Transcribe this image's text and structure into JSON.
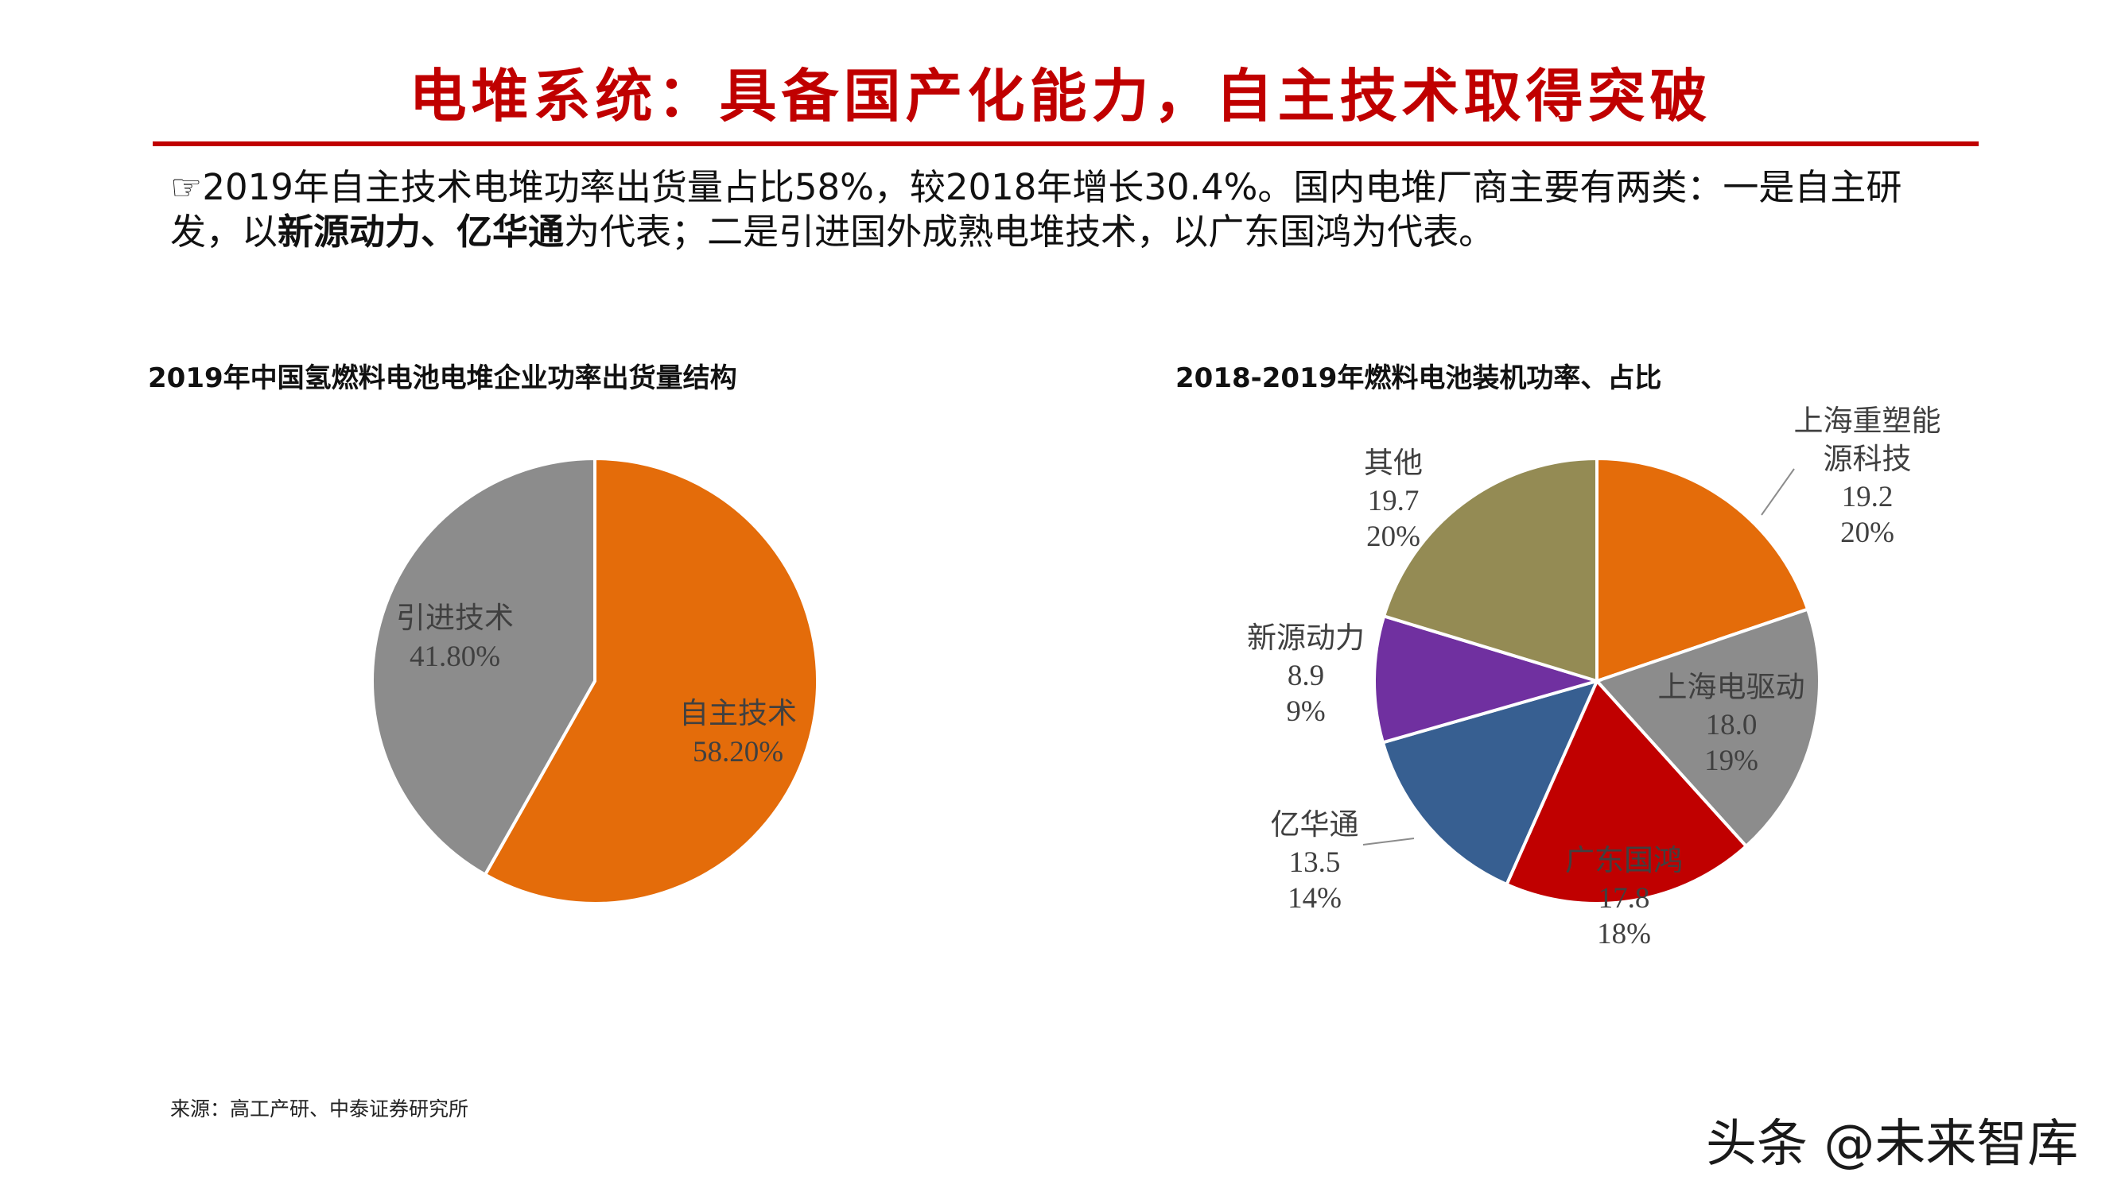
{
  "page": {
    "title": "电堆系统：具备国产化能力，自主技术取得突破",
    "intro": {
      "bullet": "☞",
      "text_part1": "2019年自主技术电堆功率出货量占比58%，较2018年增长30.4%。国内电堆厂商主要有两类：一是自主研发，以",
      "bold1": "新源动力",
      "sep": "、",
      "bold2": "亿华通",
      "text_part2": "为代表；二是引进国外成熟电堆技术，以广东国鸿为代表。"
    },
    "source": "来源：高工产研、中泰证券研究所",
    "watermark": "头条 @未来智库"
  },
  "chart_data": [
    {
      "type": "pie",
      "title": "2019年中国氢燃料电池电堆企业功率出货量结构",
      "series": [
        {
          "name": "自主技术",
          "value": 58.2,
          "label": "58.20%",
          "color": "#e46c0a"
        },
        {
          "name": "引进技术",
          "value": 41.8,
          "label": "41.80%",
          "color": "#8c8c8c"
        }
      ]
    },
    {
      "type": "pie",
      "title": "2018-2019年燃料电池装机功率、占比",
      "series": [
        {
          "name": "上海重塑能源科技",
          "value": 19.2,
          "value_label": "19.2",
          "percent": "20%",
          "color": "#e46c0a"
        },
        {
          "name": "上海电驱动",
          "value": 18.0,
          "value_label": "18.0",
          "percent": "19%",
          "color": "#8c8c8c"
        },
        {
          "name": "广东国鸿",
          "value": 17.8,
          "value_label": "17.8",
          "percent": "18%",
          "color": "#c00000"
        },
        {
          "name": "亿华通",
          "value": 13.5,
          "value_label": "13.5",
          "percent": "14%",
          "color": "#375f91"
        },
        {
          "name": "新源动力",
          "value": 8.9,
          "value_label": "8.9",
          "percent": "9%",
          "color": "#7030a0"
        },
        {
          "name": "其他",
          "value": 19.7,
          "value_label": "19.7",
          "percent": "20%",
          "color": "#948b54"
        }
      ]
    }
  ]
}
